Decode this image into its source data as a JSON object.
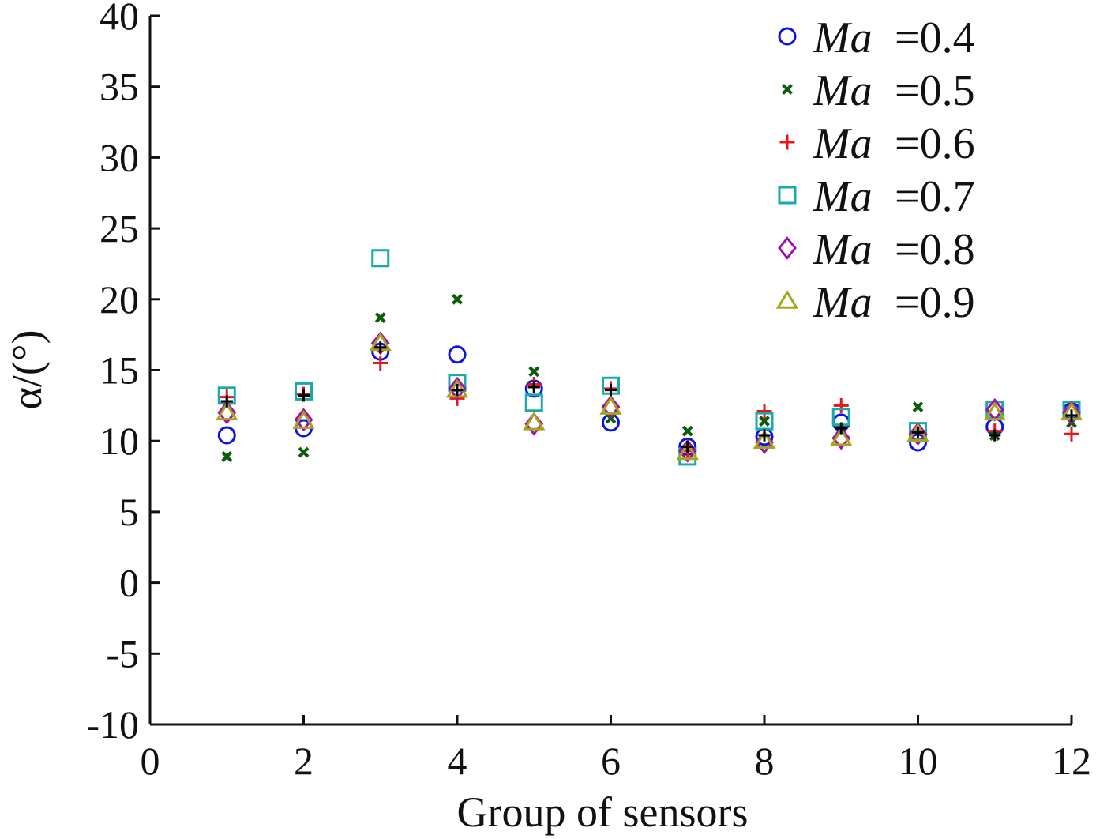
{
  "chart_data": {
    "type": "scatter",
    "title": "",
    "xlabel": "Group of sensors",
    "ylabel": "α/(°)",
    "xlim": [
      0,
      12
    ],
    "ylim": [
      -10,
      40
    ],
    "xticks": [
      0,
      2,
      4,
      6,
      8,
      10,
      12
    ],
    "yticks": [
      -10,
      -5,
      0,
      5,
      10,
      15,
      20,
      25,
      30,
      35,
      40
    ],
    "legend_position": "top-right",
    "x": [
      1,
      2,
      3,
      4,
      5,
      6,
      7,
      8,
      9,
      10,
      11,
      12
    ],
    "series": [
      {
        "name": "Ma =0.4",
        "label_var": "Ma",
        "label_value": "=0.4",
        "marker": "circle",
        "color": "#0a14e6",
        "values": [
          10.4,
          10.9,
          16.3,
          16.1,
          13.7,
          11.3,
          9.6,
          10.3,
          11.3,
          9.9,
          11.0,
          12.1
        ]
      },
      {
        "name": "Ma =0.5",
        "label_var": "Ma",
        "label_value": "=0.5",
        "marker": "x",
        "color": "#0b5c0b",
        "values": [
          8.9,
          9.2,
          18.7,
          20.0,
          14.9,
          11.6,
          10.7,
          11.4,
          10.8,
          12.4,
          10.4,
          11.3
        ]
      },
      {
        "name": "Ma =0.6",
        "label_var": "Ma",
        "label_value": "=0.6",
        "marker": "plus",
        "color": "#e8141e",
        "values": [
          13.1,
          13.3,
          15.5,
          13.0,
          14.0,
          13.7,
          9.3,
          12.1,
          12.5,
          10.7,
          10.7,
          10.5
        ]
      },
      {
        "name": "Ma =0.7",
        "label_var": "Ma",
        "label_value": "=0.7",
        "marker": "square",
        "color": "#1aaaaa",
        "values": [
          13.2,
          13.5,
          22.9,
          14.1,
          12.7,
          13.9,
          8.9,
          11.4,
          11.7,
          10.7,
          12.2,
          12.2
        ]
      },
      {
        "name": "Ma =0.8",
        "label_var": "Ma",
        "label_value": "=0.8",
        "marker": "diamond",
        "color": "#a010b0",
        "values": [
          12.0,
          11.5,
          16.9,
          13.7,
          11.2,
          12.4,
          9.3,
          9.9,
          10.2,
          10.5,
          12.2,
          12.0
        ]
      },
      {
        "name": "Ma =0.9",
        "label_var": "Ma",
        "label_value": "=0.9",
        "marker": "triangle",
        "color": "#a5a51a",
        "values": [
          12.0,
          11.4,
          16.9,
          13.6,
          11.3,
          12.4,
          9.2,
          10.0,
          10.2,
          10.5,
          12.0,
          12.0
        ]
      }
    ],
    "black_marks": {
      "marker": "plus",
      "color": "#000000",
      "values": [
        12.8,
        13.2,
        16.6,
        13.6,
        13.8,
        13.6,
        9.6,
        10.4,
        10.9,
        10.6,
        10.4,
        11.8
      ]
    }
  }
}
